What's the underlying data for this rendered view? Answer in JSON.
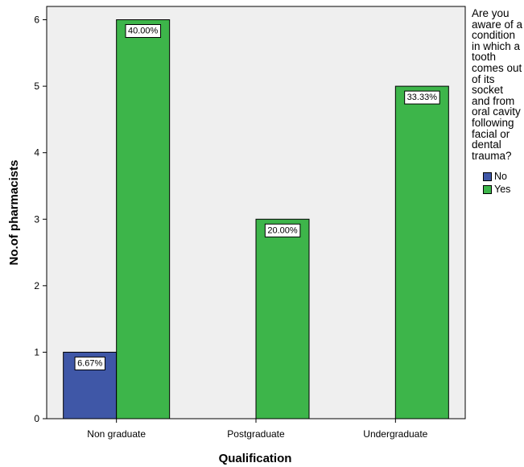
{
  "chart_data": {
    "type": "bar",
    "categories": [
      "Non graduate",
      "Postgraduate",
      "Undergraduate"
    ],
    "xlabel": "Qualification",
    "ylabel": "No.of pharmacists",
    "ylim": [
      0,
      6.2
    ],
    "yticks": [
      0,
      1,
      2,
      3,
      4,
      5,
      6
    ],
    "grid": false,
    "legend": {
      "placement": "right",
      "title": "Are you aware of a condition in which a tooth comes out of its socket and from oral cavity following facial or dental trauma?"
    },
    "series": [
      {
        "name": "No",
        "color": "#3f57a7",
        "values": [
          1,
          0,
          0
        ],
        "labels": [
          "6.67%",
          "",
          ""
        ]
      },
      {
        "name": "Yes",
        "color": "#3db54a",
        "values": [
          6,
          3,
          5
        ],
        "labels": [
          "40.00%",
          "20.00%",
          "33.33%"
        ]
      }
    ]
  }
}
